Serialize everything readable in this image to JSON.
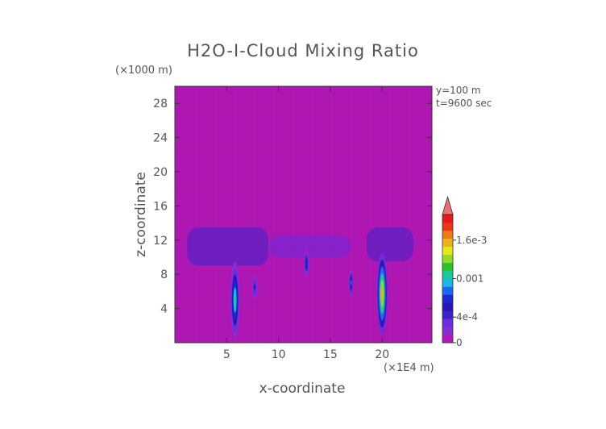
{
  "chart_data": {
    "type": "heatmap",
    "title": "H2O-I-Cloud Mixing Ratio",
    "xlabel": "x-coordinate",
    "ylabel": "z-coordinate",
    "x_unit": "(×1E4 m)",
    "y_unit": "(×1000 m)",
    "annotations": [
      "y=100 m",
      "t=9600 sec"
    ],
    "xlim": [
      0,
      24.8
    ],
    "ylim": [
      0,
      30
    ],
    "x_ticks": [
      5,
      10,
      15,
      20
    ],
    "y_ticks": [
      4,
      8,
      12,
      16,
      20,
      24,
      28
    ],
    "colorbar": {
      "tick_labels": [
        "0",
        "4e-4",
        "0.001",
        "1.6e-3"
      ],
      "tick_values": [
        0,
        0.0004,
        0.001,
        0.0016
      ],
      "max": 0.002,
      "extend": "max",
      "colors": [
        "#b418b8",
        "#8a2cd0",
        "#6a2ee0",
        "#3c24c8",
        "#2a18b4",
        "#1a2ad0",
        "#1c68f0",
        "#1ab8e8",
        "#1ac898",
        "#28c428",
        "#98d828",
        "#e8e818",
        "#f0b018",
        "#f07818",
        "#e83818",
        "#e81818"
      ],
      "extend_color": "#f07070"
    },
    "background_color": "#b418b8",
    "plumes": [
      {
        "x": 5.8,
        "z_bottom": 0.5,
        "z_top": 9.5,
        "peak": 0.0011,
        "width": 0.45
      },
      {
        "x": 20.0,
        "z_bottom": 1.0,
        "z_top": 10.5,
        "peak": 0.0016,
        "width": 0.5
      },
      {
        "x": 12.7,
        "z_bottom": 7.5,
        "z_top": 11.0,
        "peak": 0.0007,
        "width": 0.3
      },
      {
        "x": 17.0,
        "z_bottom": 5.5,
        "z_top": 8.5,
        "peak": 0.0008,
        "width": 0.2
      },
      {
        "x": 7.7,
        "z_bottom": 5.0,
        "z_top": 8.0,
        "peak": 0.0005,
        "width": 0.3
      }
    ],
    "cloud_layer": [
      {
        "x_start": 1.2,
        "x_end": 9.0,
        "z_bottom": 9.0,
        "z_top": 13.5,
        "value": 0.0004
      },
      {
        "x_start": 9.0,
        "x_end": 17.0,
        "z_bottom": 10.0,
        "z_top": 12.5,
        "value": 0.0003
      },
      {
        "x_start": 18.5,
        "x_end": 23.0,
        "z_bottom": 9.5,
        "z_top": 13.5,
        "value": 0.0004
      }
    ]
  }
}
